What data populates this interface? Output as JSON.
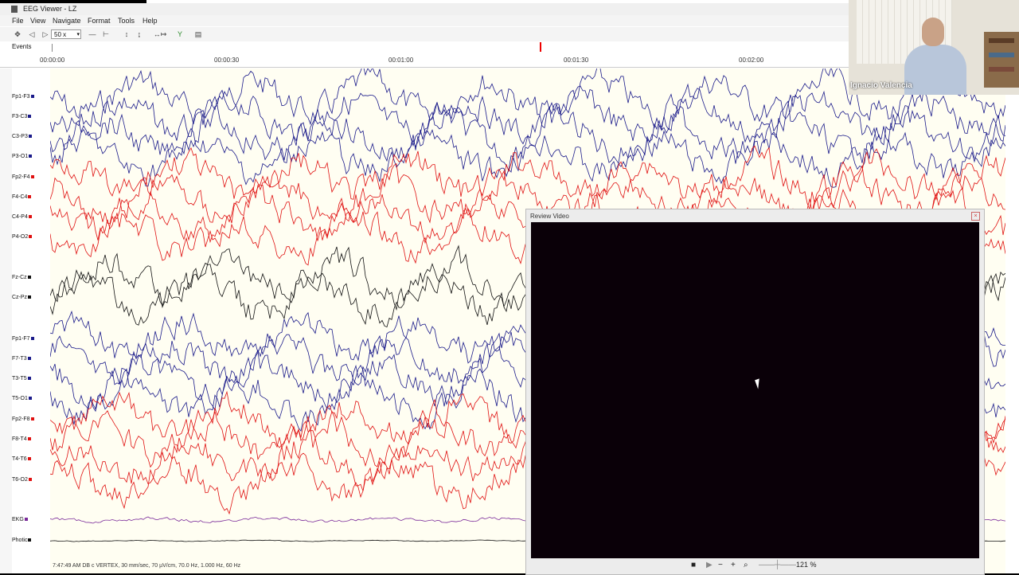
{
  "window": {
    "title": "EEG Viewer - LZ"
  },
  "menu": [
    "File",
    "View",
    "Navigate",
    "Format",
    "Tools",
    "Help"
  ],
  "toolbar": {
    "speed_value": "50 x"
  },
  "events_label": "Events",
  "timeline_ticks": [
    "00:00:00",
    "00:00:30",
    "00:01:00",
    "00:01:30",
    "00:02:00"
  ],
  "channels": [
    {
      "label": "Fp1-F3",
      "color": "#1a1a8a"
    },
    {
      "label": "F3-C3",
      "color": "#1a1a8a"
    },
    {
      "label": "C3-P3",
      "color": "#1a1a8a"
    },
    {
      "label": "P3-O1",
      "color": "#1a1a8a"
    },
    {
      "label": "Fp2-F4",
      "color": "#e01010"
    },
    {
      "label": "F4-C4",
      "color": "#e01010"
    },
    {
      "label": "C4-P4",
      "color": "#e01010"
    },
    {
      "label": "P4-O2",
      "color": "#e01010"
    },
    {
      "label": "Fz-Cz",
      "color": "#111111"
    },
    {
      "label": "Cz-Pz",
      "color": "#111111"
    },
    {
      "label": "Fp1-F7",
      "color": "#1a1a8a"
    },
    {
      "label": "F7-T3",
      "color": "#1a1a8a"
    },
    {
      "label": "T3-T5",
      "color": "#1a1a8a"
    },
    {
      "label": "T5-O1",
      "color": "#1a1a8a"
    },
    {
      "label": "Fp2-F8",
      "color": "#e01010"
    },
    {
      "label": "F8-T4",
      "color": "#e01010"
    },
    {
      "label": "T4-T6",
      "color": "#e01010"
    },
    {
      "label": "T6-O2",
      "color": "#e01010"
    },
    {
      "label": "EKG",
      "color": "#7a2a9a"
    },
    {
      "label": "Photic",
      "color": "#111111"
    }
  ],
  "status_text": "7:47:49 AM DB c VERTEX, 30 mm/sec, 70 µV/cm, 70.0 Hz, 1.000 Hz, 60 Hz",
  "video": {
    "title": "Review Video",
    "zoom": "121 %"
  },
  "webcam": {
    "name": "Ignacio Valencia"
  }
}
